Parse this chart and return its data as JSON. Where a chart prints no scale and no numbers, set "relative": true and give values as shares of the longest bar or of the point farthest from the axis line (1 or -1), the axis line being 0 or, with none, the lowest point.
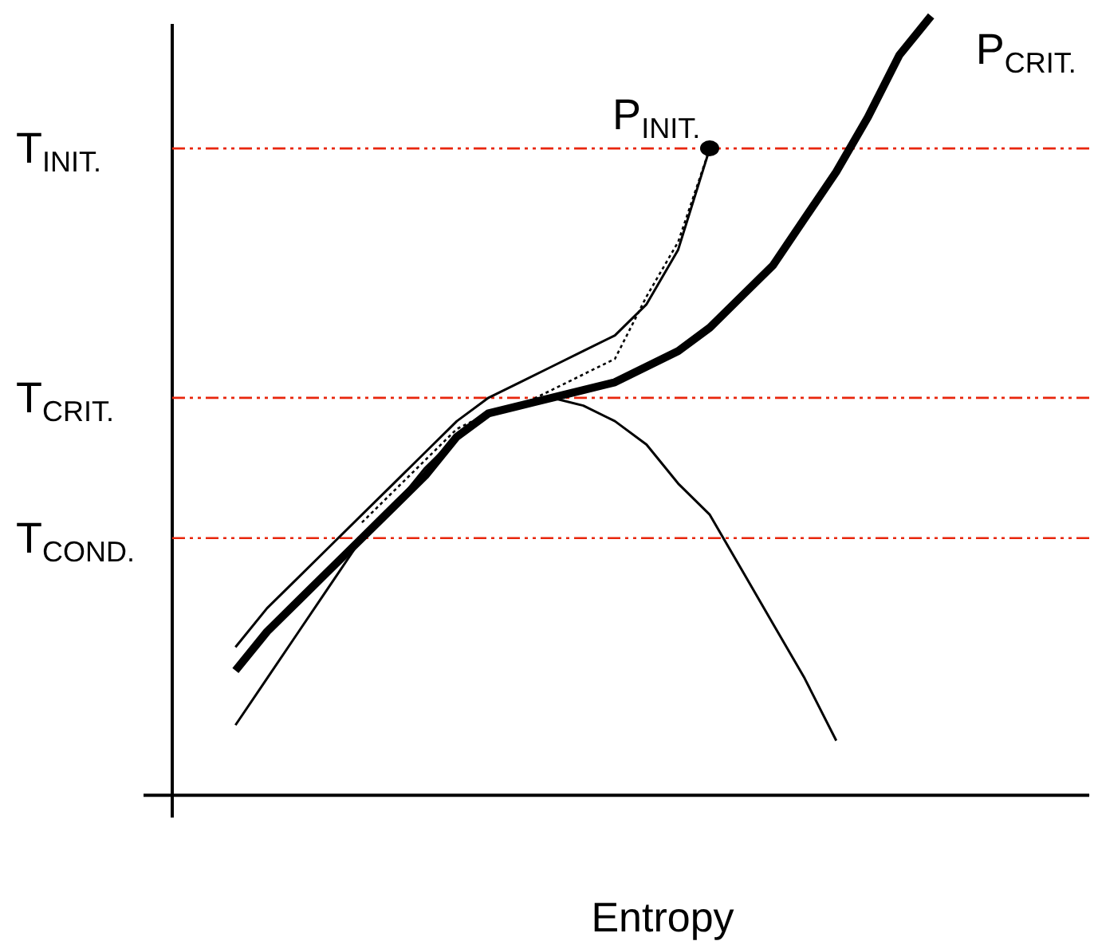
{
  "chart_data": {
    "type": "line",
    "relative": true,
    "xlabel": "Entropy",
    "legend": false,
    "marker": "none",
    "categories": [
      null,
      null,
      null,
      null,
      null,
      null,
      null,
      null,
      null,
      null,
      null,
      null,
      null,
      null,
      null,
      null,
      null,
      null,
      null,
      null,
      null,
      null,
      null,
      null,
      null,
      null,
      null,
      null,
      null,
      null
    ],
    "series": [
      {
        "color": "#000000",
        "values": [
          null,
          null,
          0.09,
          0.15,
          0.21,
          0.27,
          0.33,
          0.37,
          0.42,
          0.46,
          0.49,
          0.5,
          0.51,
          0.5,
          0.48,
          0.45,
          0.4,
          0.36,
          0.29,
          0.22,
          0.15,
          0.07,
          null,
          null,
          null,
          null,
          null,
          null,
          null,
          null
        ]
      },
      {
        "name": "P$_{INIT.}$",
        "color": "#000000",
        "values": [
          null,
          null,
          0.19,
          0.24,
          0.28,
          0.32,
          0.36,
          0.4,
          0.44,
          0.48,
          0.51,
          0.53,
          0.55,
          0.57,
          0.59,
          0.63,
          0.7,
          0.83,
          null,
          null,
          null,
          null,
          null,
          null,
          null,
          null,
          null,
          null,
          null,
          null
        ]
      },
      {
        "color": "#000000",
        "line_style": "dotted",
        "values": [
          null,
          null,
          null,
          null,
          null,
          null,
          0.35,
          0.39,
          0.43,
          0.47,
          0.49,
          0.5,
          0.52,
          0.54,
          0.56,
          0.64,
          0.71,
          0.83,
          null,
          null,
          null,
          null,
          null,
          null,
          null,
          null,
          null,
          null,
          null,
          null
        ]
      },
      {
        "name": "P$_{CRIT.}$",
        "color": "#000000",
        "values": [
          null,
          null,
          0.16,
          0.21,
          0.25,
          0.29,
          0.33,
          0.37,
          0.41,
          0.46,
          0.49,
          0.5,
          0.51,
          0.52,
          0.53,
          0.55,
          0.57,
          0.6,
          0.64,
          0.68,
          0.74,
          0.8,
          0.87,
          0.95,
          1.0,
          null,
          null,
          null,
          null,
          null
        ]
      }
    ],
    "ref_lines": [
      {
        "axis": "y",
        "value": 0.83,
        "label": "T$_{INIT.}$",
        "color": "#e8260c",
        "line_style": "dashed"
      },
      {
        "axis": "y",
        "value": 0.51,
        "label": "T$_{CRIT.}$",
        "color": "#e8260c",
        "line_style": "dashed"
      },
      {
        "axis": "y",
        "value": 0.33,
        "label": "T$_{COND.}$",
        "color": "#e8260c",
        "line_style": "dashed"
      }
    ]
  }
}
